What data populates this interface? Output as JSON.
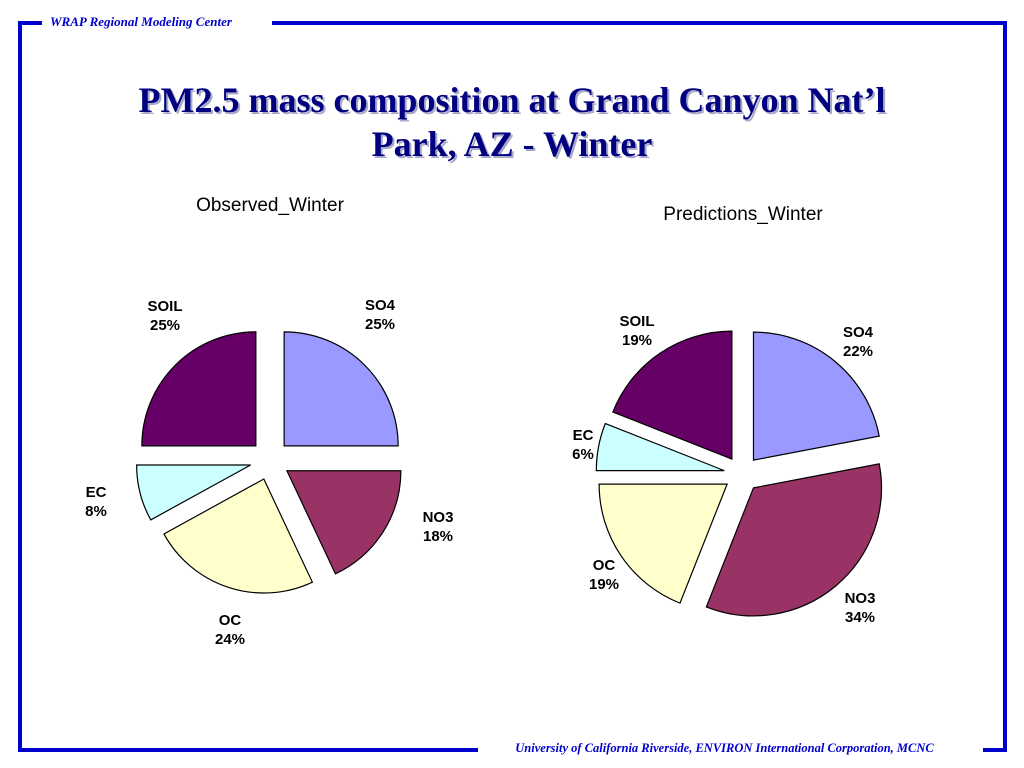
{
  "header": {
    "text": "WRAP Regional Modeling Center"
  },
  "footer": {
    "text": "University of California Riverside, ENVIRON International Corporation, MCNC"
  },
  "slide": {
    "title_line1": "PM2.5 mass composition at Grand Canyon Nat’l",
    "title_line2": "Park, AZ  - Winter"
  },
  "colors": {
    "frame": "#0000cc",
    "title": "#000080",
    "SO4": "#9999ff",
    "NO3": "#993366",
    "OC": "#ffffcc",
    "EC": "#ccffff",
    "SOIL": "#660066"
  },
  "chart_data": [
    {
      "type": "pie",
      "title": "Observed_Winter",
      "slices": [
        {
          "name": "SO4",
          "value": 25,
          "label": "25%"
        },
        {
          "name": "NO3",
          "value": 18,
          "label": "18%"
        },
        {
          "name": "OC",
          "value": 24,
          "label": "24%"
        },
        {
          "name": "EC",
          "value": 8,
          "label": "8%"
        },
        {
          "name": "SOIL",
          "value": 25,
          "label": "25%"
        }
      ]
    },
    {
      "type": "pie",
      "title": "Predictions_Winter",
      "slices": [
        {
          "name": "SO4",
          "value": 22,
          "label": "22%"
        },
        {
          "name": "NO3",
          "value": 34,
          "label": "34%"
        },
        {
          "name": "OC",
          "value": 19,
          "label": "19%"
        },
        {
          "name": "EC",
          "value": 6,
          "label": "6%"
        },
        {
          "name": "SOIL",
          "value": 19,
          "label": "19%"
        }
      ]
    }
  ]
}
